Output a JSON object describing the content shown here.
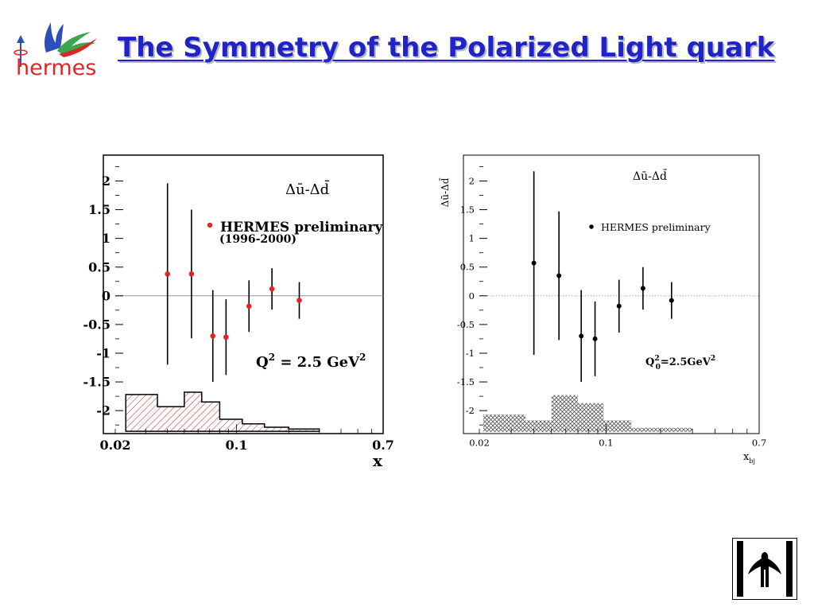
{
  "header": {
    "logo_text": "hermes",
    "title": "The Symmetry of the Polarized Light quark"
  },
  "colors": {
    "title": "#1f23c8",
    "left_markers": "#e8231e",
    "left_hatch": "#d2232a",
    "right_markers": "#000000",
    "right_hatch": "#555555"
  },
  "chart_data": [
    {
      "type": "scatter",
      "x": [
        0.04,
        0.055,
        0.073,
        0.087,
        0.118,
        0.16,
        0.23
      ],
      "y": [
        0.38,
        0.38,
        -0.7,
        -0.72,
        -0.18,
        0.12,
        -0.08
      ],
      "y_err": [
        1.58,
        1.12,
        0.8,
        0.66,
        0.45,
        0.36,
        0.32
      ],
      "xscale": "log",
      "xlim": [
        0.02,
        0.7
      ],
      "ylim": [
        -2.4,
        2.45
      ],
      "x_ticks": [
        "0.02",
        "0.1",
        "0.7"
      ],
      "y_ticks": [
        "2",
        "1.5",
        "1",
        "0.5",
        "0",
        "-0.5",
        "-1",
        "-1.5",
        "-2"
      ],
      "xlabel": "x",
      "legend": "HERMES preliminary",
      "legend_note": "(1996-2000)",
      "label_quantity_html": "Δu&#772;-Δd&#772;",
      "label_q2": "Q",
      "label_q2_sup": "2",
      "label_q2_value": " = 2.5 GeV",
      "label_q2_value_sup": "2",
      "zero_line": true,
      "systematic_band": {
        "edges": [
          0.023,
          0.035,
          0.05,
          0.063,
          0.08,
          0.108,
          0.145,
          0.2,
          0.3
        ],
        "tops": [
          -1.72,
          -1.93,
          -1.68,
          -1.85,
          -2.15,
          -2.23,
          -2.29,
          -2.32
        ],
        "bottom": -2.36
      }
    },
    {
      "type": "scatter",
      "x": [
        0.04,
        0.055,
        0.073,
        0.087,
        0.118,
        0.16,
        0.23
      ],
      "y": [
        0.57,
        0.35,
        -0.7,
        -0.75,
        -0.18,
        0.13,
        -0.08
      ],
      "y_err": [
        1.6,
        1.12,
        0.8,
        0.65,
        0.46,
        0.37,
        0.32
      ],
      "xscale": "log",
      "xlim": [
        0.02,
        0.7
      ],
      "ylim": [
        -2.4,
        2.45
      ],
      "x_ticks": [
        "0.02",
        "0.1",
        "0.7"
      ],
      "y_ticks": [
        "2",
        "1.5",
        "1",
        "0.5",
        "0",
        "-0.5",
        "-1",
        "-1.5",
        "-2"
      ],
      "xlabel": "x",
      "xlabel_sub": "bj",
      "ylabel_html": "Δu&#772;-Δd&#772;",
      "legend": "HERMES preliminary",
      "label_quantity_html": "Δu&#772;-Δd&#772;",
      "label_q2": "Q",
      "label_q2_sup": "2",
      "label_q2_sub": "0",
      "label_q2_value": "=2.5GeV",
      "label_q2_value_sup": "2",
      "zero_line": true,
      "zero_line_style": "dotted",
      "systematic_band": {
        "edges": [
          0.021,
          0.036,
          0.05,
          0.07,
          0.097,
          0.138,
          0.3
        ],
        "tops": [
          -2.07,
          -2.17,
          -1.73,
          -1.87,
          -2.17,
          -2.3
        ],
        "bottom": -2.37
      }
    }
  ]
}
